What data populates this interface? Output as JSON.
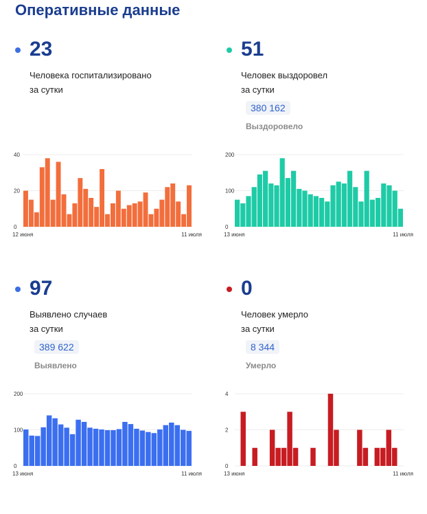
{
  "header": {
    "title": "Оперативные данные"
  },
  "panels": [
    {
      "number": "23",
      "caption_line1": "Человека госпитализировано",
      "caption_line2": "за сутки",
      "color": "#f26e3c",
      "dot_color": "#3c6fe2"
    },
    {
      "number": "51",
      "caption_line1": "Человек выздоровел",
      "caption_line2": "за сутки",
      "total": "380 162",
      "total_label": "Выздоровело",
      "color": "#1ecba6",
      "dot_color": "#1ecba6"
    },
    {
      "number": "97",
      "caption_line1": "Выявлено случаев",
      "caption_line2": "за сутки",
      "total": "389 622",
      "total_label": "Выявлено",
      "color": "#3b6ff0",
      "dot_color": "#3c6fe2"
    },
    {
      "number": "0",
      "caption_line1": "Человек умерло",
      "caption_line2": "за сутки",
      "total": "8 344",
      "total_label": "Умерло",
      "color": "#c71c22",
      "dot_color": "#c71c22"
    }
  ],
  "chart_data": [
    {
      "type": "bar",
      "series": [
        {
          "values": [
            20,
            15,
            8,
            33,
            38,
            15,
            36,
            18,
            7,
            13,
            27,
            21,
            16,
            11,
            32,
            7,
            13,
            20,
            10,
            12,
            13,
            14,
            19,
            7,
            10,
            15,
            22,
            24,
            14,
            7,
            23
          ]
        }
      ],
      "ylim": [
        0,
        40
      ],
      "y_ticks": [
        "0",
        "20",
        "40"
      ],
      "x_tick_labels": [
        "12 июня",
        "11 июля"
      ],
      "grid": true
    },
    {
      "type": "bar",
      "series": [
        {
          "values": [
            75,
            65,
            85,
            110,
            145,
            155,
            120,
            115,
            190,
            135,
            155,
            105,
            100,
            90,
            85,
            80,
            70,
            115,
            125,
            120,
            155,
            110,
            70,
            155,
            75,
            80,
            120,
            115,
            100,
            50
          ]
        }
      ],
      "ylim": [
        0,
        200
      ],
      "y_ticks": [
        "0",
        "100",
        "200"
      ],
      "x_tick_labels": [
        "13 июня",
        "11 июля"
      ],
      "grid": true
    },
    {
      "type": "bar",
      "series": [
        {
          "values": [
            101,
            84,
            83,
            107,
            140,
            132,
            115,
            106,
            88,
            128,
            122,
            106,
            103,
            101,
            99,
            99,
            102,
            122,
            116,
            103,
            98,
            94,
            91,
            101,
            113,
            120,
            113,
            100,
            97
          ]
        }
      ],
      "ylim": [
        0,
        200
      ],
      "y_ticks": [
        "0",
        "100",
        "200"
      ],
      "x_tick_labels": [
        "13 июня",
        "11 июля"
      ],
      "grid": true
    },
    {
      "type": "bar",
      "series": [
        {
          "values": [
            0,
            3,
            0,
            1,
            0,
            0,
            2,
            1,
            1,
            3,
            1,
            0,
            0,
            1,
            0,
            0,
            4,
            2,
            0,
            0,
            0,
            2,
            1,
            0,
            1,
            1,
            2,
            1,
            0
          ]
        }
      ],
      "ylim": [
        0,
        4
      ],
      "y_ticks": [
        "0",
        "2",
        "4"
      ],
      "x_tick_labels": [
        "13 июня",
        "11 июля"
      ],
      "grid": true
    }
  ]
}
